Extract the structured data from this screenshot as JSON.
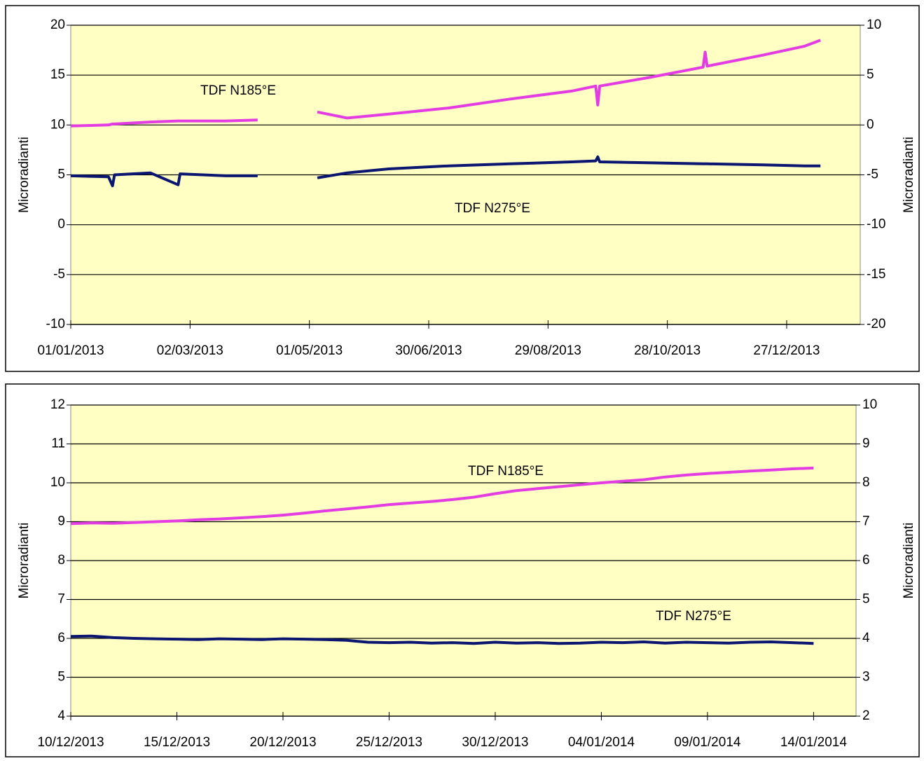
{
  "chart_data": [
    {
      "type": "line",
      "ylabel": "Microradianti",
      "y2label": "Microradianti",
      "x": [
        "2013-01-01",
        "2013-01-20",
        "2013-01-22",
        "2013-01-23",
        "2013-02-10",
        "2013-02-24",
        "2013-02-25",
        "2013-03-20",
        "2013-04-05",
        "2013-04-20",
        "2013-05-05",
        "2013-05-20",
        "2013-06-10",
        "2013-07-10",
        "2013-08-10",
        "2013-09-10",
        "2013-09-22",
        "2013-09-23",
        "2013-09-24",
        "2013-10-20",
        "2013-11-15",
        "2013-11-16",
        "2013-11-17",
        "2013-12-15",
        "2014-01-05",
        "2014-01-13"
      ],
      "series": [
        {
          "name": "TDF N185°E",
          "color": "#e23ce2",
          "axis": "y2",
          "values": [
            -0.1,
            0.0,
            0.1,
            0.1,
            0.3,
            0.4,
            0.4,
            0.4,
            0.5,
            null,
            1.3,
            0.7,
            1.1,
            1.7,
            2.6,
            3.4,
            3.9,
            2.0,
            3.9,
            4.8,
            5.8,
            7.3,
            5.9,
            7.0,
            7.9,
            8.5
          ]
        },
        {
          "name": "TDF N275°E",
          "color": "#0a1670",
          "values": [
            4.9,
            4.8,
            3.9,
            5.0,
            5.2,
            4.0,
            5.1,
            4.9,
            4.9,
            null,
            4.7,
            5.2,
            5.6,
            5.9,
            6.1,
            6.3,
            6.4,
            6.8,
            6.3,
            6.2,
            6.1,
            6.1,
            6.1,
            6.0,
            5.9,
            5.9
          ]
        }
      ],
      "xlim": [
        "2013-01-01",
        "2014-02-02"
      ],
      "xticks": [
        {
          "value": "2013-01-01",
          "label": "01/01/2013"
        },
        {
          "value": "2013-03-02",
          "label": "02/03/2013"
        },
        {
          "value": "2013-05-01",
          "label": "01/05/2013"
        },
        {
          "value": "2013-06-30",
          "label": "30/06/2013"
        },
        {
          "value": "2013-08-29",
          "label": "29/08/2013"
        },
        {
          "value": "2013-10-28",
          "label": "28/10/2013"
        },
        {
          "value": "2013-12-27",
          "label": "27/12/2013"
        }
      ],
      "ylim": [
        -10,
        20
      ],
      "yticks": [
        -10,
        -5,
        0,
        5,
        10,
        15,
        20
      ],
      "y2lim": [
        -20,
        10
      ],
      "y2ticks": [
        -20,
        -15,
        -10,
        -5,
        0,
        5,
        10
      ],
      "grid": true
    },
    {
      "type": "line",
      "ylabel": "Microradianti",
      "y2label": "Microradianti",
      "x": [
        "2013-12-10",
        "2013-12-11",
        "2013-12-12",
        "2013-12-13",
        "2013-12-14",
        "2013-12-15",
        "2013-12-16",
        "2013-12-17",
        "2013-12-18",
        "2013-12-19",
        "2013-12-20",
        "2013-12-21",
        "2013-12-22",
        "2013-12-23",
        "2013-12-24",
        "2013-12-25",
        "2013-12-26",
        "2013-12-27",
        "2013-12-28",
        "2013-12-29",
        "2013-12-30",
        "2013-12-31",
        "2014-01-01",
        "2014-01-02",
        "2014-01-03",
        "2014-01-04",
        "2014-01-05",
        "2014-01-06",
        "2014-01-07",
        "2014-01-08",
        "2014-01-09",
        "2014-01-10",
        "2014-01-11",
        "2014-01-12",
        "2014-01-13",
        "2014-01-14"
      ],
      "series": [
        {
          "name": "TDF N275°E",
          "color": "#e23ce2",
          "axis": "y2",
          "values": [
            6.95,
            6.97,
            6.96,
            6.98,
            7.0,
            7.02,
            7.05,
            7.07,
            7.1,
            7.13,
            7.17,
            7.22,
            7.28,
            7.33,
            7.38,
            7.44,
            7.48,
            7.52,
            7.57,
            7.63,
            7.72,
            7.8,
            7.85,
            7.9,
            7.95,
            8.0,
            8.04,
            8.08,
            8.15,
            8.2,
            8.24,
            8.27,
            8.3,
            8.33,
            8.36,
            8.38
          ]
        },
        {
          "name": "TDF N185°E",
          "color": "#0a1670",
          "values": [
            6.05,
            6.06,
            6.02,
            6.0,
            5.99,
            5.98,
            5.97,
            5.99,
            5.98,
            5.97,
            5.99,
            5.98,
            5.97,
            5.95,
            5.9,
            5.89,
            5.9,
            5.88,
            5.89,
            5.87,
            5.9,
            5.88,
            5.89,
            5.87,
            5.88,
            5.9,
            5.89,
            5.91,
            5.88,
            5.9,
            5.89,
            5.88,
            5.9,
            5.91,
            5.89,
            5.87
          ]
        }
      ],
      "xlim": [
        "2013-12-10",
        "2014-01-16"
      ],
      "xticks": [
        {
          "value": "2013-12-10",
          "label": "10/12/2013"
        },
        {
          "value": "2013-12-15",
          "label": "15/12/2013"
        },
        {
          "value": "2013-12-20",
          "label": "20/12/2013"
        },
        {
          "value": "2013-12-25",
          "label": "25/12/2013"
        },
        {
          "value": "2013-12-30",
          "label": "30/12/2013"
        },
        {
          "value": "2014-01-04",
          "label": "04/01/2014"
        },
        {
          "value": "2014-01-09",
          "label": "09/01/2014"
        },
        {
          "value": "2014-01-14",
          "label": "14/01/2014"
        }
      ],
      "ylim": [
        4,
        12
      ],
      "yticks": [
        4,
        5,
        6,
        7,
        8,
        9,
        10,
        11,
        12
      ],
      "y2lim": [
        2,
        10
      ],
      "y2ticks": [
        2,
        3,
        4,
        5,
        6,
        7,
        8,
        9,
        10
      ],
      "grid": true
    }
  ]
}
